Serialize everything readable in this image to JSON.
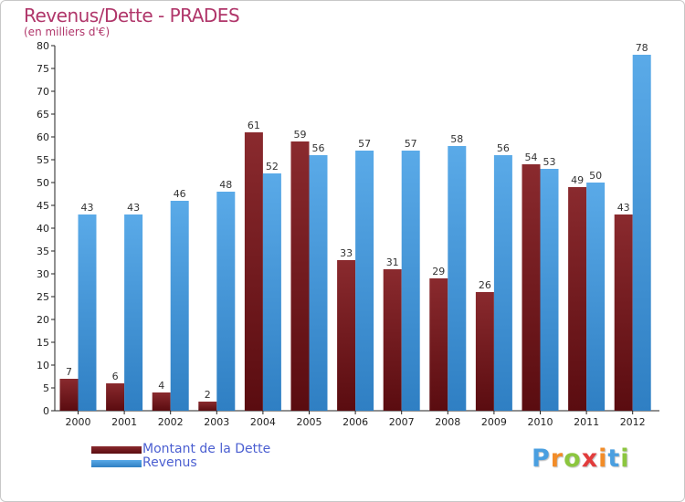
{
  "header": {
    "title": "Revenus/Dette - PRADES",
    "subtitle": "(en milliers d'€)"
  },
  "chart_data": {
    "type": "bar",
    "categories": [
      "2000",
      "2001",
      "2002",
      "2003",
      "2004",
      "2005",
      "2006",
      "2007",
      "2008",
      "2009",
      "2010",
      "2011",
      "2012"
    ],
    "series": [
      {
        "name": "Montant de la Dette",
        "color": "#7a1f23",
        "values": [
          7,
          6,
          4,
          2,
          61,
          59,
          33,
          31,
          29,
          26,
          54,
          49,
          43
        ]
      },
      {
        "name": "Revenus",
        "color": "#4a9fe0",
        "values": [
          43,
          43,
          46,
          48,
          52,
          56,
          57,
          57,
          58,
          56,
          53,
          50,
          78
        ]
      }
    ],
    "ylim": [
      0,
      80
    ],
    "ytick_step": 5,
    "grid": false,
    "legend_position": "bottom-left",
    "data_labels": true
  },
  "legend": {
    "items": [
      {
        "label": "Montant de la Dette",
        "color": "#7a1f23"
      },
      {
        "label": "Revenus",
        "color": "#4a9fe0"
      }
    ]
  },
  "brand": {
    "letters": [
      "P",
      "r",
      "o",
      "x",
      "i",
      "t",
      "i"
    ],
    "colors": [
      "#4a9fe0",
      "#f28c28",
      "#8cc63f",
      "#e23c3c",
      "#f28c28",
      "#4a9fe0",
      "#8cc63f"
    ]
  }
}
